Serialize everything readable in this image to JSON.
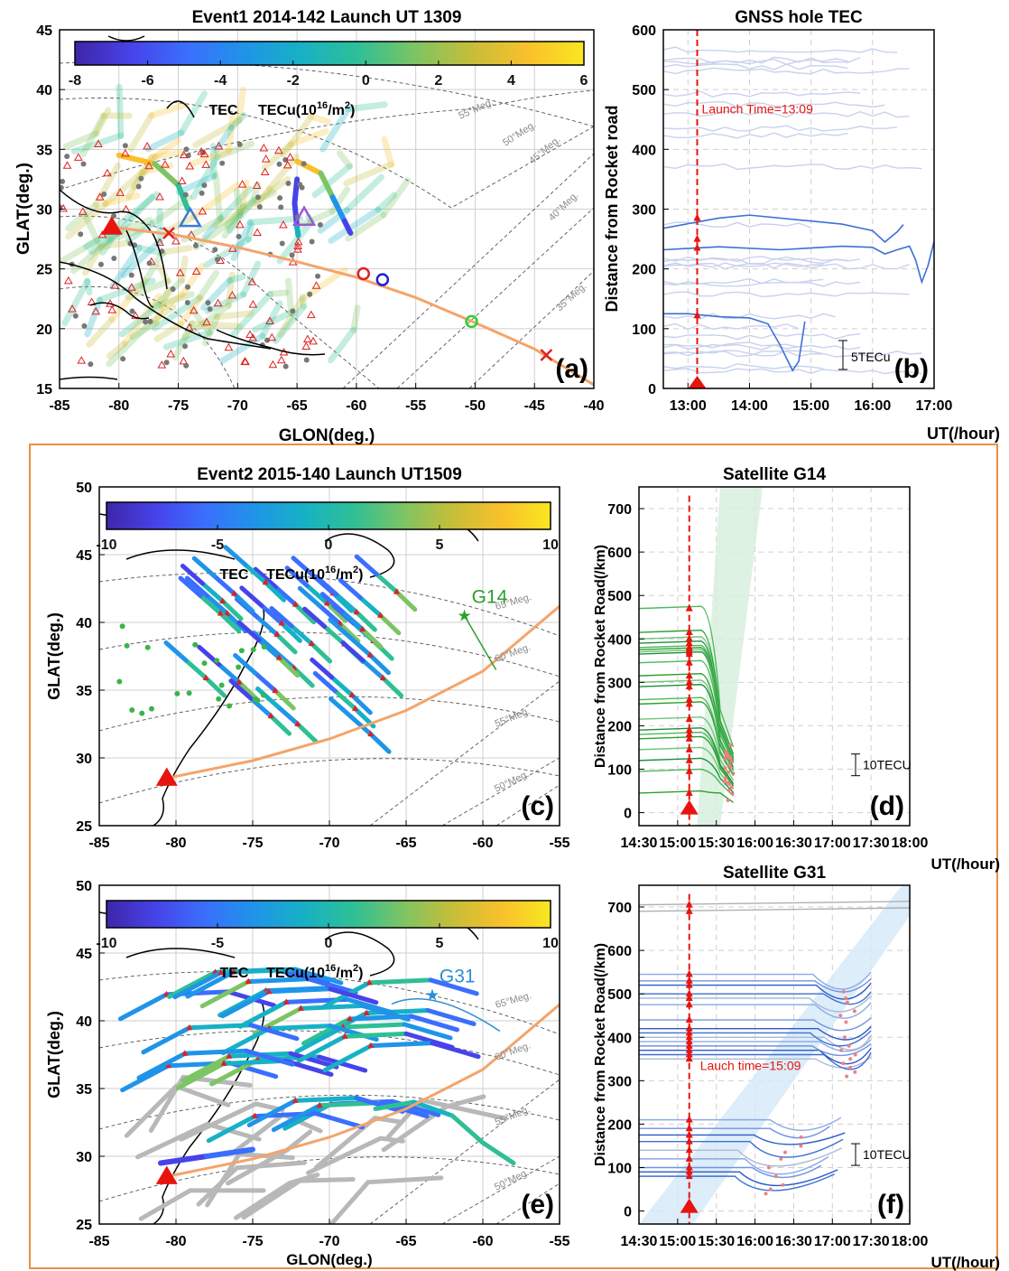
{
  "figure": {
    "frame_color": "#e8913f",
    "route_color": "#f4a46a",
    "launch_color": "#e8140f"
  },
  "colormap": [
    "#3e26a8",
    "#4743e9",
    "#3a6ffd",
    "#1f94e8",
    "#17b1c5",
    "#2ebf96",
    "#7cc464",
    "#c5be39",
    "#f9c02c",
    "#f9e721"
  ],
  "chart_data": [
    {
      "id": "a",
      "type": "scatter",
      "panel_label": "(a)",
      "title": "Event1 2014-142 Launch UT 1309",
      "xlabel": "GLON(deg.)",
      "ylabel": "GLAT(deg.)",
      "xlim": [
        -85,
        -40
      ],
      "ylim": [
        15,
        45
      ],
      "x_ticks": [
        "-85",
        "-80",
        "-75",
        "-70",
        "-65",
        "-60",
        "-55",
        "-50",
        "-45",
        "-40"
      ],
      "y_ticks": [
        "15",
        "20",
        "25",
        "30",
        "35",
        "40",
        "45"
      ],
      "grid": true,
      "colorbar": {
        "ticks": [
          "-8",
          "-6",
          "-4",
          "-2",
          "0",
          "2",
          "4",
          "6"
        ],
        "label_left": "TEC",
        "label_right": "TECu(10",
        "label_exp": "16",
        "label_tail": "/m",
        "label_exp2": "2",
        "label_close": ")",
        "range": [
          -8,
          6
        ]
      },
      "magnetic_labels": [
        "55°Meg.",
        "50°Meg.",
        "45°Meg.",
        "40°Meg.",
        "35°Meg."
      ],
      "launch_site": [
        -80.6,
        28.5
      ],
      "route": [
        [
          -80.6,
          28.5
        ],
        [
          -75,
          27.8
        ],
        [
          -70,
          26.8
        ],
        [
          -65,
          25.6
        ],
        [
          -60,
          24.3
        ],
        [
          -55,
          22.6
        ],
        [
          -50,
          20.5
        ],
        [
          -45,
          18.3
        ],
        [
          -40,
          15.3
        ]
      ],
      "route_markers": [
        {
          "shape": "x",
          "x": -75.8,
          "y": 28.0,
          "color": "#e02020"
        },
        {
          "shape": "o",
          "x": -59.4,
          "y": 24.6,
          "color": "#e02020"
        },
        {
          "shape": "o",
          "x": -57.8,
          "y": 24.1,
          "color": "#2020d0"
        },
        {
          "shape": "o",
          "x": -50.3,
          "y": 20.6,
          "color": "#30d030"
        },
        {
          "shape": "x",
          "x": -44.0,
          "y": 17.8,
          "color": "#e02020"
        }
      ],
      "open_triangles": [
        {
          "x": -74.0,
          "y": 29.2,
          "color": "#3a7bd5"
        },
        {
          "x": -64.4,
          "y": 29.3,
          "color": "#9b59d0"
        }
      ],
      "highlight_tracks": [
        {
          "points": [
            [
              -80,
              34.5
            ],
            [
              -77,
              33.8
            ],
            [
              -75,
              32
            ],
            [
              -74.2,
              30
            ]
          ],
          "values": [
            5,
            2,
            -1,
            -7
          ]
        },
        {
          "points": [
            [
              -65,
              34
            ],
            [
              -63,
              33
            ],
            [
              -62,
              31
            ],
            [
              -61,
              29
            ],
            [
              -60.5,
              28
            ]
          ],
          "values": [
            4,
            1,
            -3,
            -6,
            -2
          ]
        },
        {
          "points": [
            [
              -65,
              32.5
            ],
            [
              -65.2,
              30.5
            ],
            [
              -65,
              28.5
            ],
            [
              -64.9,
              27.8
            ]
          ],
          "values": [
            -7,
            -6,
            -2,
            0
          ]
        }
      ]
    },
    {
      "id": "b",
      "type": "line",
      "panel_label": "(b)",
      "title": "GNSS hole TEC",
      "xlabel": "UT(/hour)",
      "ylabel": "Distance from Rocket road",
      "xlim": [
        12.6,
        17.0
      ],
      "ylim": [
        0,
        600
      ],
      "x_ticks": [
        "13:00",
        "14:00",
        "15:00",
        "16:00",
        "17:00"
      ],
      "y_ticks": [
        "0",
        "100",
        "200",
        "300",
        "400",
        "500",
        "600"
      ],
      "grid": true,
      "launch_time": 13.15,
      "launch_label": "Launch Time=13:09",
      "scale_label": "5TECu",
      "highlight_series": [
        {
          "name": "",
          "points": [
            [
              12.6,
              268
            ],
            [
              13.5,
              285
            ],
            [
              14,
              290
            ],
            [
              15,
              280
            ],
            [
              15.5,
              275
            ],
            [
              16,
              264
            ],
            [
              16.2,
              245
            ],
            [
              16.4,
              262
            ],
            [
              16.5,
              274
            ]
          ]
        },
        {
          "name": "",
          "points": [
            [
              12.6,
              232
            ],
            [
              13.5,
              237
            ],
            [
              14.5,
              232
            ],
            [
              15.5,
              238
            ],
            [
              16,
              236
            ],
            [
              16.2,
              225
            ],
            [
              16.4,
              232
            ],
            [
              16.6,
              238
            ],
            [
              16.7,
              215
            ],
            [
              16.8,
              178
            ],
            [
              16.9,
              205
            ],
            [
              17.0,
              246
            ]
          ]
        },
        {
          "name": "",
          "points": [
            [
              12.6,
              125
            ],
            [
              13,
              125
            ],
            [
              13.5,
              120
            ],
            [
              14,
              118
            ],
            [
              14.3,
              108
            ],
            [
              14.5,
              72
            ],
            [
              14.7,
              30
            ],
            [
              14.8,
              45
            ],
            [
              14.9,
              112
            ]
          ]
        }
      ]
    },
    {
      "id": "c",
      "type": "scatter",
      "panel_label": "(c)",
      "title": "Event2 2015-140 Launch UT1509",
      "xlabel": "",
      "ylabel": "GLAT(deg.)",
      "xlim": [
        -85,
        -55
      ],
      "ylim": [
        25,
        50
      ],
      "x_ticks": [
        "-85",
        "-80",
        "-75",
        "-70",
        "-65",
        "-60",
        "-55"
      ],
      "y_ticks": [
        "25",
        "30",
        "35",
        "40",
        "45",
        "50"
      ],
      "grid": true,
      "colorbar": {
        "ticks": [
          "-10",
          "-5",
          "0",
          "5",
          "10"
        ],
        "label_left": "TEC",
        "label_right": "TECu(10",
        "label_exp": "16",
        "label_tail": "/m",
        "label_exp2": "2",
        "label_close": ")",
        "range": [
          -10,
          10
        ]
      },
      "magnetic_labels": [
        "65°Meg.",
        "60°Meg.",
        "55°Meg.",
        "50°Meg."
      ],
      "launch_site": [
        -80.6,
        28.5
      ],
      "route": [
        [
          -80.6,
          28.5
        ],
        [
          -75,
          29.8
        ],
        [
          -70,
          31.4
        ],
        [
          -65,
          33.5
        ],
        [
          -60,
          36.4
        ],
        [
          -55,
          41.2
        ]
      ],
      "satellite": {
        "name": "G14",
        "x": -61.2,
        "y": 40.5,
        "color": "#2ca02c"
      }
    },
    {
      "id": "d",
      "type": "line",
      "panel_label": "(d)",
      "title": "Satellite G14",
      "xlabel": "UT(/hour)",
      "ylabel": "Distance from Rocket Road(/km)",
      "xlim": [
        14.5,
        18.0
      ],
      "ylim": [
        -30,
        750
      ],
      "x_ticks": [
        "14:30",
        "15:00",
        "15:30",
        "16:00",
        "16:30",
        "17:00",
        "17:30",
        "18:00"
      ],
      "y_ticks": [
        "0",
        "100",
        "200",
        "300",
        "400",
        "500",
        "600",
        "700"
      ],
      "grid": true,
      "launch_time": 15.15,
      "scale_label": "10TECU",
      "shade": [
        [
          15.25,
          -30
        ],
        [
          15.55,
          -30
        ],
        [
          16.1,
          750
        ],
        [
          15.55,
          750
        ]
      ],
      "shade_color": "#d6efdc",
      "series_start": [
        45,
        95,
        120,
        145,
        170,
        180,
        190,
        215,
        250,
        260,
        290,
        300,
        315,
        345,
        365,
        370,
        375,
        380,
        390,
        400,
        415,
        470
      ]
    },
    {
      "id": "e",
      "type": "scatter",
      "panel_label": "(e)",
      "title": "",
      "xlabel": "GLON(deg.)",
      "ylabel": "GLAT(deg.)",
      "xlim": [
        -85,
        -55
      ],
      "ylim": [
        25,
        50
      ],
      "x_ticks": [
        "-85",
        "-80",
        "-75",
        "-70",
        "-65",
        "-60",
        "-55"
      ],
      "y_ticks": [
        "25",
        "30",
        "35",
        "40",
        "45",
        "50"
      ],
      "grid": true,
      "colorbar": {
        "ticks": [
          "-10",
          "-5",
          "0",
          "5",
          "10"
        ],
        "label_left": "TEC",
        "label_right": "TECu(10",
        "label_exp": "16",
        "label_tail": "/m",
        "label_exp2": "2",
        "label_close": ")",
        "range": [
          -10,
          10
        ]
      },
      "magnetic_labels": [
        "65°Meg.",
        "60°Meg.",
        "55°Meg.",
        "50°Meg."
      ],
      "launch_site": [
        -80.6,
        28.5
      ],
      "route": [
        [
          -80.6,
          28.5
        ],
        [
          -75,
          29.8
        ],
        [
          -70,
          31.4
        ],
        [
          -65,
          33.5
        ],
        [
          -60,
          36.4
        ],
        [
          -55,
          41.2
        ]
      ],
      "satellite": {
        "name": "G31",
        "x": -63.3,
        "y": 41.9,
        "color": "#2b8fd6"
      }
    },
    {
      "id": "f",
      "type": "line",
      "panel_label": "(f)",
      "title": "Satellite G31",
      "xlabel": "UT(/hour)",
      "ylabel": "Distance from Rocket Road(/km)",
      "xlim": [
        14.5,
        18.0
      ],
      "ylim": [
        -30,
        750
      ],
      "x_ticks": [
        "14:30",
        "15:00",
        "15:30",
        "16:00",
        "16:30",
        "17:00",
        "17:30",
        "18:00"
      ],
      "y_ticks": [
        "0",
        "100",
        "200",
        "300",
        "400",
        "500",
        "600",
        "700"
      ],
      "grid": true,
      "launch_time": 15.15,
      "launch_label": "Lauch time=15:09",
      "scale_label": "10TECU",
      "shade": [
        [
          14.5,
          -30
        ],
        [
          15.2,
          -30
        ],
        [
          18.0,
          680
        ],
        [
          18.0,
          750
        ],
        [
          17.9,
          750
        ]
      ],
      "shade_color": "#d4e8f8",
      "series_start": [
        80,
        90,
        100,
        120,
        140,
        160,
        175,
        190,
        210,
        350,
        360,
        370,
        380,
        390,
        400,
        410,
        420,
        440,
        475,
        490,
        500,
        520,
        530,
        545,
        690,
        705
      ]
    }
  ]
}
